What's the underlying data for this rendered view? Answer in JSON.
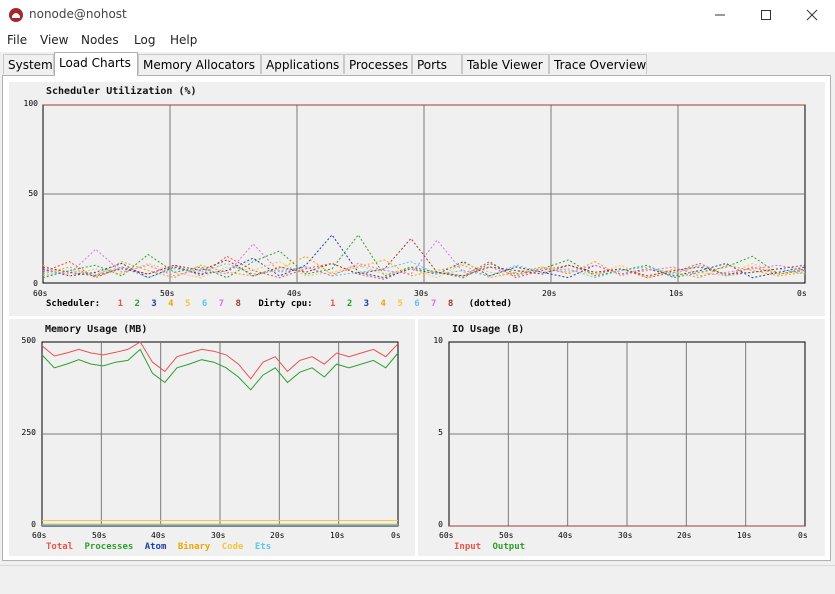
{
  "window": {
    "title": "nonode@nohost"
  },
  "menu": [
    "File",
    "View",
    "Nodes",
    "Log",
    "Help"
  ],
  "tabs": [
    "System",
    "Load Charts",
    "Memory Allocators",
    "Applications",
    "Processes",
    "Ports",
    "Table Viewer",
    "Trace Overview"
  ],
  "active_tab": "Load Charts",
  "colors": {
    "s1": "#e8534a",
    "s2": "#2ca02c",
    "s3": "#1f3fa8",
    "s4": "#f0a500",
    "s5": "#f5c542",
    "s6": "#5bc8e8",
    "s7": "#e070e0",
    "s8": "#9c3b2e"
  },
  "scheduler": {
    "title": "Scheduler Utilization (%)",
    "y_ticks": [
      "100",
      "50",
      "0"
    ],
    "x_ticks": [
      "60s",
      "50s",
      "40s",
      "30s",
      "20s",
      "10s",
      "0s"
    ],
    "legend_label": "Scheduler:",
    "numbers": [
      "1",
      "2",
      "3",
      "4",
      "5",
      "6",
      "7",
      "8"
    ],
    "dirty_label": "Dirty cpu:",
    "dotted_label": "(dotted)"
  },
  "memory": {
    "title": "Memory Usage (MB)",
    "y_ticks": [
      "500",
      "250",
      "0"
    ],
    "x_ticks": [
      "60s",
      "50s",
      "40s",
      "30s",
      "20s",
      "10s",
      "0s"
    ],
    "legend": [
      "Total",
      "Processes",
      "Atom",
      "Binary",
      "Code",
      "Ets"
    ]
  },
  "io": {
    "title": "IO Usage (B)",
    "y_ticks": [
      "10",
      "5",
      "0"
    ],
    "x_ticks": [
      "60s",
      "50s",
      "40s",
      "30s",
      "20s",
      "10s",
      "0s"
    ],
    "legend": [
      "Input",
      "Output"
    ]
  },
  "chart_data": [
    {
      "type": "line",
      "title": "Scheduler Utilization (%)",
      "ylim": [
        0,
        100
      ],
      "x_ticks": [
        "60s",
        "50s",
        "40s",
        "30s",
        "20s",
        "10s",
        "0s"
      ],
      "series": [
        {
          "name": "1",
          "values": [
            100,
            100,
            100,
            100,
            100,
            100,
            100
          ]
        },
        {
          "name": "2",
          "values": [
            100,
            100,
            100,
            100,
            100,
            100,
            100
          ]
        },
        {
          "name": "3",
          "values": [
            100,
            100,
            100,
            100,
            100,
            100,
            100
          ]
        },
        {
          "name": "4",
          "values": [
            100,
            100,
            100,
            100,
            100,
            100,
            100
          ]
        },
        {
          "name": "5",
          "values": [
            100,
            100,
            100,
            100,
            100,
            100,
            100
          ]
        },
        {
          "name": "6",
          "values": [
            100,
            100,
            100,
            100,
            100,
            100,
            100
          ]
        },
        {
          "name": "7",
          "values": [
            100,
            100,
            100,
            100,
            100,
            100,
            100
          ]
        },
        {
          "name": "8",
          "values": [
            100,
            100,
            100,
            100,
            100,
            100,
            100
          ]
        }
      ],
      "dirty_cpu_series": [
        {
          "name": "1",
          "values": [
            6,
            12,
            3,
            9,
            5,
            10,
            4,
            15,
            7,
            3,
            8,
            11,
            5,
            2,
            9,
            6,
            4,
            12,
            3,
            7,
            10,
            5,
            8,
            3,
            6,
            11,
            4,
            9,
            5,
            7
          ]
        },
        {
          "name": "2",
          "values": [
            3,
            7,
            10,
            4,
            16,
            6,
            9,
            3,
            12,
            18,
            5,
            8,
            27,
            4,
            9,
            6,
            3,
            11,
            5,
            8,
            13,
            4,
            7,
            10,
            3,
            6,
            9,
            15,
            5,
            8
          ]
        },
        {
          "name": "3",
          "values": [
            8,
            4,
            6,
            11,
            3,
            9,
            5,
            7,
            14,
            4,
            10,
            27,
            6,
            3,
            8,
            5,
            12,
            4,
            9,
            6,
            3,
            10,
            5,
            8,
            4,
            7,
            11,
            3,
            6,
            9
          ]
        },
        {
          "name": "4",
          "values": [
            5,
            9,
            4,
            12,
            7,
            3,
            10,
            6,
            4,
            8,
            15,
            5,
            9,
            13,
            4,
            7,
            10,
            3,
            6,
            9,
            5,
            12,
            4,
            8,
            6,
            3,
            10,
            7,
            4,
            6
          ]
        },
        {
          "name": "5",
          "values": [
            10,
            4,
            8,
            5,
            11,
            6,
            3,
            9,
            7,
            12,
            4,
            6,
            10,
            5,
            8,
            3,
            11,
            6,
            4,
            9,
            7,
            5,
            10,
            3,
            8,
            6,
            4,
            11,
            5,
            7
          ]
        },
        {
          "name": "6",
          "values": [
            4,
            7,
            5,
            9,
            3,
            8,
            6,
            11,
            5,
            7,
            9,
            4,
            6,
            8,
            12,
            5,
            7,
            4,
            10,
            6,
            8,
            3,
            7,
            9,
            5,
            10,
            4,
            6,
            8,
            5
          ]
        },
        {
          "name": "7",
          "values": [
            7,
            5,
            19,
            6,
            10,
            4,
            8,
            5,
            22,
            6,
            9,
            4,
            11,
            7,
            5,
            24,
            6,
            9,
            4,
            8,
            6,
            10,
            5,
            7,
            9,
            4,
            6,
            8,
            10,
            7
          ]
        },
        {
          "name": "8",
          "values": [
            9,
            6,
            4,
            8,
            5,
            10,
            7,
            13,
            4,
            9,
            6,
            11,
            5,
            8,
            25,
            6,
            4,
            9,
            7,
            5,
            10,
            6,
            8,
            4,
            7,
            9,
            5,
            6,
            8,
            10
          ]
        }
      ]
    },
    {
      "type": "line",
      "title": "Memory Usage (MB)",
      "ylim": [
        0,
        500
      ],
      "x_ticks": [
        "60s",
        "50s",
        "40s",
        "30s",
        "20s",
        "10s",
        "0s"
      ],
      "series": [
        {
          "name": "Total",
          "values": [
            490,
            462,
            470,
            480,
            470,
            465,
            472,
            480,
            500,
            445,
            420,
            460,
            470,
            480,
            475,
            465,
            440,
            400,
            445,
            460,
            420,
            450,
            460,
            440,
            470,
            460,
            470,
            480,
            460,
            495
          ]
        },
        {
          "name": "Processes",
          "values": [
            465,
            430,
            440,
            452,
            440,
            435,
            445,
            450,
            480,
            415,
            390,
            430,
            440,
            452,
            445,
            430,
            405,
            370,
            410,
            430,
            390,
            418,
            430,
            405,
            440,
            430,
            440,
            450,
            430,
            470
          ]
        },
        {
          "name": "Atom",
          "values": [
            1,
            1,
            1,
            1,
            1,
            1,
            1,
            1,
            1,
            1,
            1,
            1,
            1,
            1,
            1,
            1,
            1,
            1,
            1,
            1,
            1,
            1,
            1,
            1,
            1,
            1,
            1,
            1,
            1,
            1
          ]
        },
        {
          "name": "Binary",
          "values": [
            5,
            5,
            5,
            5,
            5,
            5,
            5,
            5,
            5,
            5,
            5,
            5,
            5,
            5,
            5,
            5,
            5,
            5,
            5,
            5,
            5,
            5,
            5,
            5,
            5,
            5,
            5,
            5,
            5,
            5
          ]
        },
        {
          "name": "Code",
          "values": [
            15,
            15,
            15,
            15,
            15,
            15,
            15,
            15,
            15,
            15,
            15,
            15,
            15,
            15,
            15,
            15,
            15,
            15,
            15,
            15,
            15,
            15,
            15,
            15,
            15,
            15,
            15,
            15,
            15,
            15
          ]
        },
        {
          "name": "Ets",
          "values": [
            2,
            2,
            2,
            2,
            2,
            2,
            2,
            2,
            2,
            2,
            2,
            2,
            2,
            2,
            2,
            2,
            2,
            2,
            2,
            2,
            2,
            2,
            2,
            2,
            2,
            2,
            2,
            2,
            2,
            2
          ]
        }
      ]
    },
    {
      "type": "line",
      "title": "IO Usage (B)",
      "ylim": [
        0,
        10
      ],
      "x_ticks": [
        "60s",
        "50s",
        "40s",
        "30s",
        "20s",
        "10s",
        "0s"
      ],
      "series": [
        {
          "name": "Input",
          "values": [
            0,
            0,
            0,
            0,
            0,
            0,
            0
          ]
        },
        {
          "name": "Output",
          "values": [
            0,
            0,
            0,
            0,
            0,
            0,
            0
          ]
        }
      ]
    }
  ]
}
